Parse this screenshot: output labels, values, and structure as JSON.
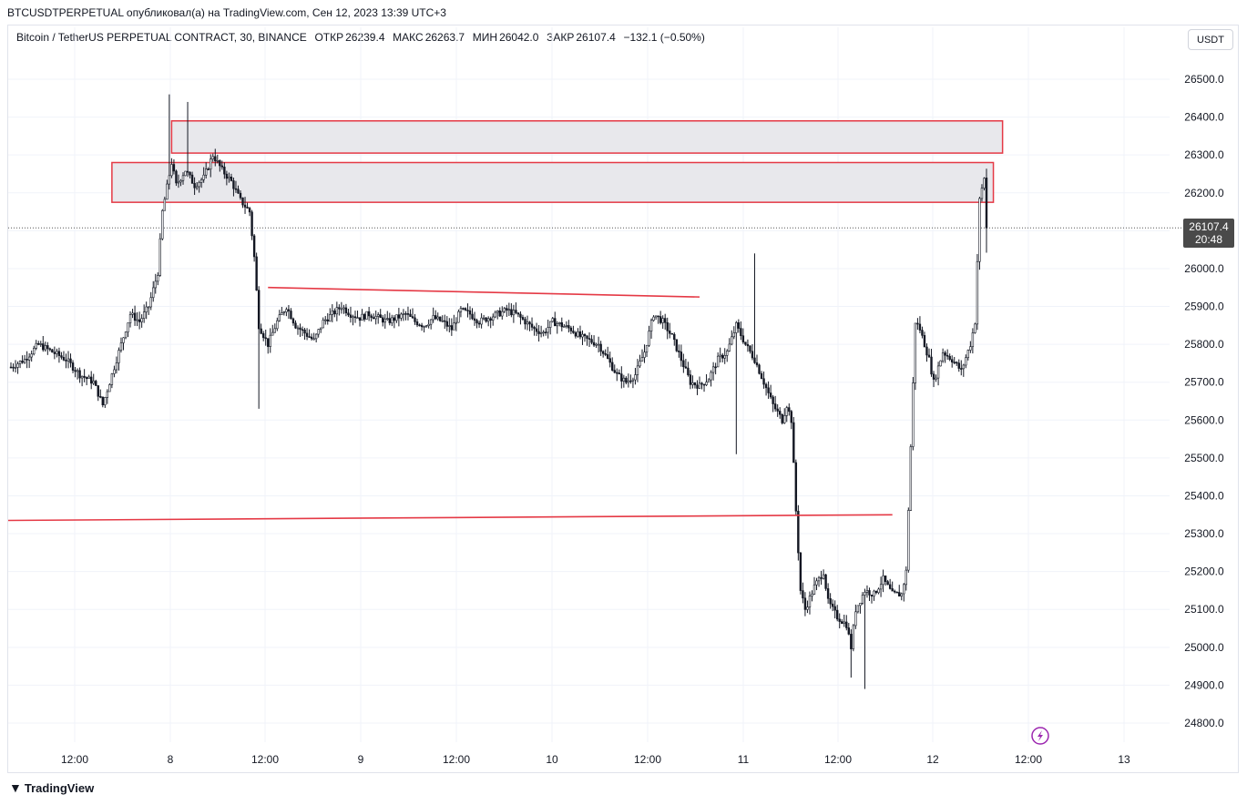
{
  "header": {
    "publish_line": "BTCUSDTPERPETUAL опубликовал(а) на TradingView.com, Сен 12, 2023 13:39 UTC+3"
  },
  "legend": {
    "symbol": "Bitcoin / TetherUS PERPETUAL CONTRACT, 30, BINANCE",
    "open_label": "ОТКР",
    "open_value": "26239.4",
    "high_label": "МАКС",
    "high_value": "26263.7",
    "low_label": "МИН",
    "low_value": "26042.0",
    "close_label": "ЗАКР",
    "close_value": "26107.4",
    "change": "−132.1 (−0.50%)"
  },
  "currency_button": "USDT",
  "last_price": {
    "price": "26107.4",
    "countdown": "20:48"
  },
  "footer": {
    "brand": "TradingView",
    "logo": "tradingview-logo"
  },
  "colors": {
    "candle": "#131722",
    "drawing": "#e53945",
    "zone_fill": "#e8e8ec",
    "grid": "#f0f3fa",
    "flash_icon": "#9c27b0"
  },
  "chart_data": {
    "type": "candlestick",
    "title": "",
    "ylim": [
      24750,
      26560
    ],
    "yticks": [
      "26500.0",
      "26400.0",
      "26300.0",
      "26200.0",
      "26100.0",
      "26000.0",
      "25900.0",
      "25800.0",
      "25700.0",
      "25600.0",
      "25500.0",
      "25400.0",
      "25300.0",
      "25200.0",
      "25100.0",
      "25000.0",
      "24900.0",
      "24800.0"
    ],
    "xticks": [
      "12:00",
      "8",
      "12:00",
      "9",
      "12:00",
      "10",
      "12:00",
      "11",
      "12:00",
      "12",
      "12:00",
      "13"
    ],
    "grid": true,
    "price_path": [
      [
        0,
        25740
      ],
      [
        6,
        25760
      ],
      [
        12,
        25800
      ],
      [
        18,
        25780
      ],
      [
        24,
        25760
      ],
      [
        30,
        25720
      ],
      [
        36,
        25700
      ],
      [
        40,
        25640
      ],
      [
        44,
        25720
      ],
      [
        48,
        25800
      ],
      [
        52,
        25880
      ],
      [
        56,
        25860
      ],
      [
        60,
        25900
      ],
      [
        64,
        25990
      ],
      [
        66,
        26150
      ],
      [
        70,
        26280
      ],
      [
        72,
        26220
      ],
      [
        76,
        26260
      ],
      [
        80,
        26220
      ],
      [
        84,
        26240
      ],
      [
        88,
        26300
      ],
      [
        92,
        26260
      ],
      [
        96,
        26230
      ],
      [
        100,
        26180
      ],
      [
        104,
        26150
      ],
      [
        106,
        26030
      ],
      [
        108,
        25850
      ],
      [
        112,
        25800
      ],
      [
        116,
        25860
      ],
      [
        120,
        25900
      ],
      [
        124,
        25850
      ],
      [
        128,
        25830
      ],
      [
        132,
        25810
      ],
      [
        136,
        25860
      ],
      [
        140,
        25880
      ],
      [
        144,
        25900
      ],
      [
        148,
        25880
      ],
      [
        152,
        25870
      ],
      [
        156,
        25880
      ],
      [
        160,
        25870
      ],
      [
        164,
        25860
      ],
      [
        168,
        25870
      ],
      [
        172,
        25880
      ],
      [
        176,
        25860
      ],
      [
        180,
        25850
      ],
      [
        184,
        25870
      ],
      [
        188,
        25860
      ],
      [
        192,
        25840
      ],
      [
        196,
        25890
      ],
      [
        200,
        25880
      ],
      [
        204,
        25860
      ],
      [
        208,
        25870
      ],
      [
        212,
        25880
      ],
      [
        216,
        25890
      ],
      [
        220,
        25880
      ],
      [
        224,
        25860
      ],
      [
        228,
        25840
      ],
      [
        232,
        25830
      ],
      [
        236,
        25860
      ],
      [
        240,
        25850
      ],
      [
        244,
        25840
      ],
      [
        248,
        25820
      ],
      [
        252,
        25810
      ],
      [
        256,
        25800
      ],
      [
        260,
        25760
      ],
      [
        264,
        25720
      ],
      [
        268,
        25700
      ],
      [
        272,
        25720
      ],
      [
        276,
        25780
      ],
      [
        280,
        25880
      ],
      [
        284,
        25860
      ],
      [
        288,
        25820
      ],
      [
        292,
        25760
      ],
      [
        296,
        25700
      ],
      [
        300,
        25690
      ],
      [
        304,
        25710
      ],
      [
        308,
        25760
      ],
      [
        312,
        25780
      ],
      [
        316,
        25850
      ],
      [
        320,
        25800
      ],
      [
        324,
        25760
      ],
      [
        328,
        25700
      ],
      [
        332,
        25640
      ],
      [
        336,
        25600
      ],
      [
        338,
        25640
      ],
      [
        340,
        25600
      ],
      [
        342,
        25360
      ],
      [
        344,
        25150
      ],
      [
        346,
        25100
      ],
      [
        350,
        25160
      ],
      [
        354,
        25200
      ],
      [
        356,
        25120
      ],
      [
        360,
        25080
      ],
      [
        364,
        25060
      ],
      [
        366,
        25000
      ],
      [
        368,
        25100
      ],
      [
        372,
        25150
      ],
      [
        376,
        25140
      ],
      [
        380,
        25180
      ],
      [
        384,
        25140
      ],
      [
        388,
        25140
      ],
      [
        390,
        25200
      ],
      [
        394,
        25860
      ],
      [
        396,
        25840
      ],
      [
        400,
        25760
      ],
      [
        402,
        25700
      ],
      [
        406,
        25780
      ],
      [
        410,
        25760
      ],
      [
        414,
        25730
      ],
      [
        418,
        25800
      ],
      [
        420,
        25860
      ],
      [
        422,
        26180
      ],
      [
        424,
        26240
      ],
      [
        425,
        26107
      ]
    ],
    "candles_note": "30-minute candles; last candle O 26239.4 H 26263.7 L 26042.0 C 26107.4"
  },
  "drawings": {
    "zone_upper": {
      "price_top": 26390,
      "price_bottom": 26305,
      "x_start": 70,
      "x_end": 432
    },
    "zone_lower": {
      "price_top": 26280,
      "price_bottom": 26175,
      "x_start": 44,
      "x_end": 428
    },
    "trendline_mid": {
      "x_start": 112,
      "p_start": 25950,
      "x_end": 300,
      "p_end": 25925
    },
    "trendline_low": {
      "x_start": 0,
      "p_start": 25335,
      "x_end": 384,
      "p_end": 25350
    }
  }
}
